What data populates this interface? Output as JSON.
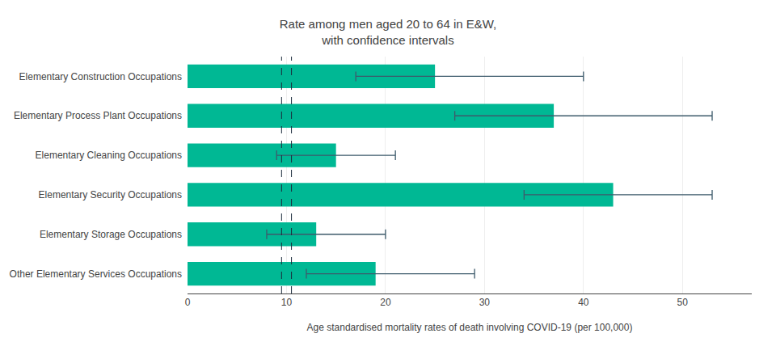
{
  "chart_data": {
    "type": "bar",
    "orientation": "horizontal",
    "title": "Rate among men aged 20 to 64 in E&W,\nwith confidence intervals",
    "x_label": "Age standardised mortality rates of death involving COVID-19 (per 100,000)",
    "categories": [
      "Elementary Construction Occupations",
      "Elementary Process Plant Occupations",
      "Elementary Cleaning Occupations",
      "Elementary Security Occupations",
      "Elementary Storage Occupations",
      "Other Elementary Services Occupations"
    ],
    "values": [
      25,
      37,
      15,
      43,
      13,
      19
    ],
    "color": "#00B894",
    "confidence_intervals": {
      "lower": [
        17,
        27,
        9,
        34,
        8,
        12
      ],
      "upper": [
        40,
        53,
        21,
        53,
        20,
        29
      ],
      "color": "#3d5a6b"
    },
    "reference_lines": {
      "values": [
        9.5,
        10.5
      ],
      "color": "#1a2a3a",
      "line_style": "dashed"
    },
    "xlim": [
      0,
      57
    ],
    "xticks": [
      0,
      10,
      20,
      30,
      40,
      50
    ],
    "grid": true
  }
}
